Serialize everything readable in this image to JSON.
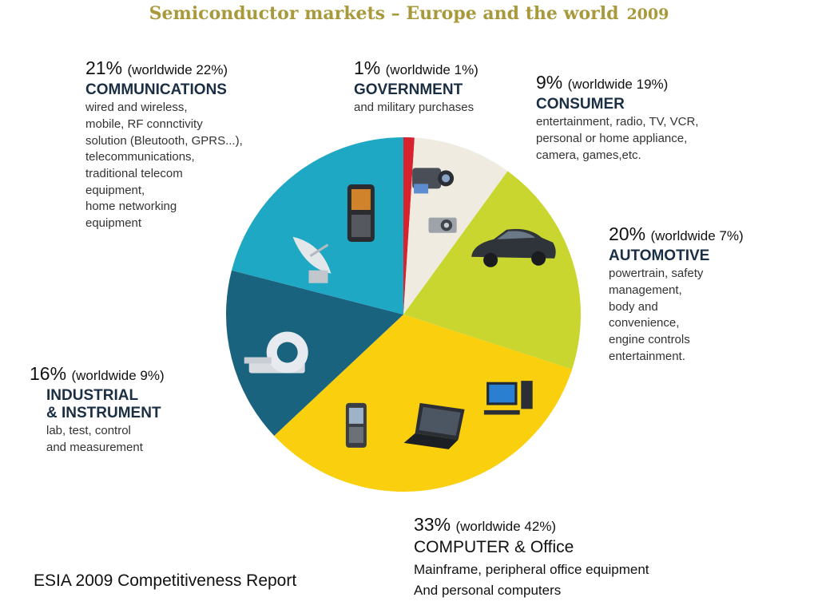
{
  "title": "Semiconductor markets – Europe and the world",
  "title_year": "2009",
  "source": "ESIA 2009 Competitiveness Report",
  "colors": {
    "title": "#a89a3c",
    "government": "#d7232f",
    "consumer": "#efebe0",
    "automotive": "#c9d630",
    "computer": "#f9cf0e",
    "industrial": "#19637f",
    "communications": "#1fa8c4"
  },
  "chart_data": {
    "type": "pie",
    "title": "Semiconductor markets – Europe and the world 2009",
    "unit": "%",
    "slices": [
      {
        "label": "GOVERNMENT",
        "value": 1,
        "worldwide": 1,
        "pct_text": "1%",
        "worldwide_text": "(worldwide 1%)",
        "description": "and military purchases",
        "icons": []
      },
      {
        "label": "CONSUMER",
        "value": 9,
        "worldwide": 19,
        "pct_text": "9%",
        "worldwide_text": "(worldwide 19%)",
        "description": "entertainment, radio, TV, VCR,\npersonal or home appliance,\ncamera, games,etc.",
        "icons": [
          "camcorder-icon",
          "camera-icon"
        ]
      },
      {
        "label": "AUTOMOTIVE",
        "value": 20,
        "worldwide": 7,
        "pct_text": "20%",
        "worldwide_text": "(worldwide 7%)",
        "description": "powertrain, safety\nmanagement,\nbody and\nconvenience,\nengine controls\nentertainment.",
        "icons": [
          "car-icon"
        ]
      },
      {
        "label": "COMPUTER & Office",
        "value": 33,
        "worldwide": 42,
        "pct_text": "33%",
        "worldwide_text": "(worldwide 42%)",
        "description": "Mainframe, peripheral office equipment\nAnd personal computers",
        "icons": [
          "desktop-computer-icon",
          "laptop-icon",
          "smartphone-icon"
        ]
      },
      {
        "label": "INDUSTRIAL\n& INSTRUMENT",
        "value": 16,
        "worldwide": 9,
        "pct_text": "16%",
        "worldwide_text": "(worldwide 9%)",
        "description": "lab, test, control\nand measurement",
        "icons": [
          "mri-scanner-icon"
        ]
      },
      {
        "label": "COMMUNICATIONS",
        "value": 21,
        "worldwide": 22,
        "pct_text": "21%",
        "worldwide_text": "(worldwide 22%)",
        "description": "wired and wireless,\nmobile, RF connctivity\nsolution (Bleutooth, GPRS...),\ntelecommunications,\ntraditional telecom\nequipment,\nhome networking\nequipment",
        "icons": [
          "mobile-phone-icon",
          "satellite-dish-icon"
        ]
      }
    ],
    "start_angle_deg": 0,
    "direction": "clockwise",
    "legend": "none"
  }
}
